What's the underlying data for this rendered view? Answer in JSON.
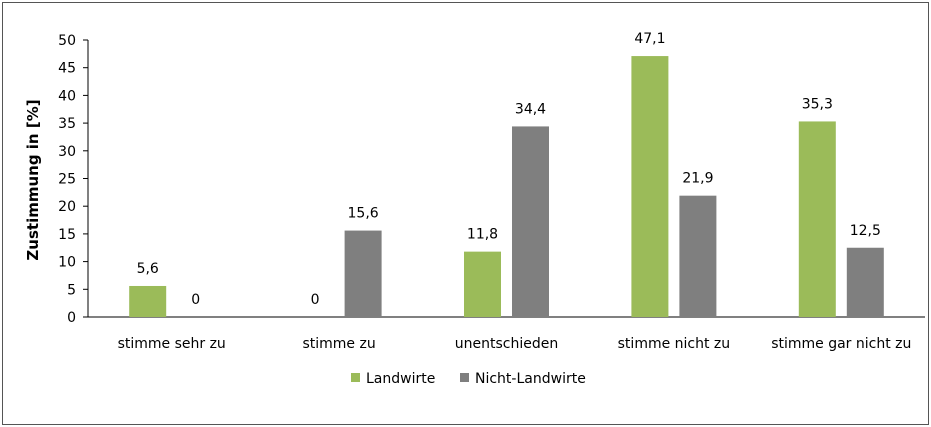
{
  "chart_data": {
    "type": "bar",
    "title": "",
    "xlabel": "",
    "ylabel": "Zustimmung in [%]",
    "ylim": [
      0,
      50
    ],
    "yticks": [
      0,
      5,
      10,
      15,
      20,
      25,
      30,
      35,
      40,
      45,
      50
    ],
    "categories": [
      "stimme sehr zu",
      "stimme zu",
      "unentschieden",
      "stimme nicht zu",
      "stimme gar nicht zu"
    ],
    "series": [
      {
        "name": "Landwirte",
        "color": "#9bbb59",
        "values": [
          5.6,
          0,
          11.8,
          47.1,
          35.3
        ],
        "labels": [
          "5,6",
          "0",
          "11,8",
          "47,1",
          "35,3"
        ]
      },
      {
        "name": "Nicht-Landwirte",
        "color": "#7f7f7f",
        "values": [
          0,
          15.6,
          34.4,
          21.9,
          12.5
        ],
        "labels": [
          "0",
          "15,6",
          "34,4",
          "21,9",
          "12,5"
        ]
      }
    ],
    "grid": false,
    "legend": "bottom-center"
  }
}
